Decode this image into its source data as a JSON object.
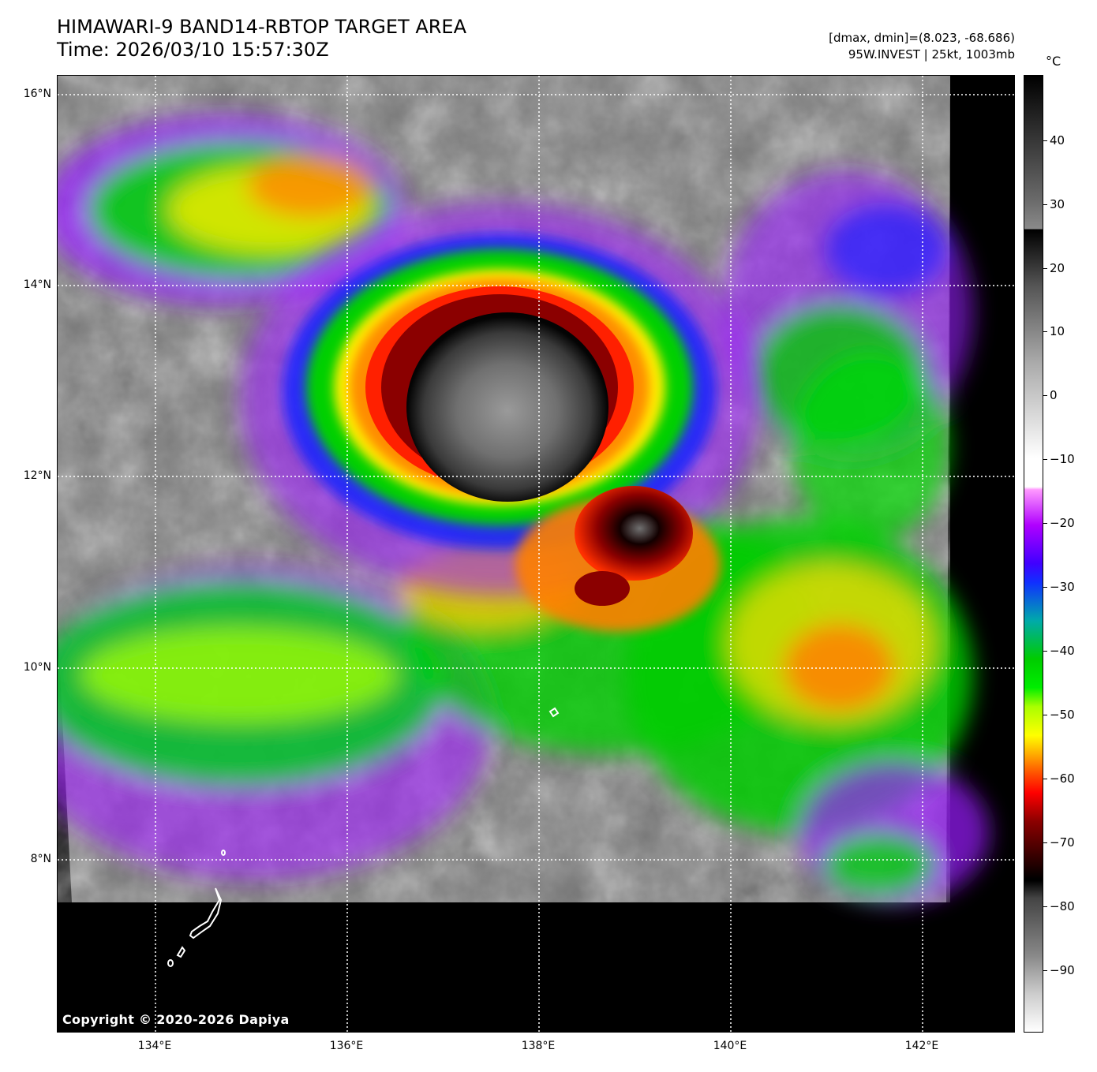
{
  "title": {
    "line1": "HIMAWARI-9 BAND14-RBTOP TARGET AREA",
    "line2": "Time: 2026/03/10 15:57:30Z"
  },
  "meta": {
    "line1": "[dmax, dmin]=(8.023, -68.686)",
    "line2": "95W.INVEST | 25kt, 1003mb"
  },
  "copyright": "Copyright © 2020-2026 Dapiya",
  "latitude_labels": [
    "16°N",
    "14°N",
    "12°N",
    "10°N",
    "8°N"
  ],
  "longitude_labels": [
    "134°E",
    "136°E",
    "138°E",
    "140°E",
    "142°E"
  ],
  "colorbar": {
    "unit": "°C",
    "tick_labels": [
      "40",
      "30",
      "20",
      "10",
      "0",
      "−10",
      "−20",
      "−30",
      "−40",
      "−50",
      "−60",
      "−70",
      "−80",
      "−90"
    ],
    "range_celsius": [
      -100,
      50
    ]
  },
  "colors": {
    "coldest_core": "#000000",
    "very_cold": "#8b0000",
    "cold_red": "#ff2000",
    "orange": "#ff8c00",
    "yellow": "#ffff00",
    "green": "#00e000",
    "blue": "#1010ff",
    "purple": "#b000ff",
    "warm_gray": "#6a6a6a",
    "grid": "#ffffff"
  }
}
